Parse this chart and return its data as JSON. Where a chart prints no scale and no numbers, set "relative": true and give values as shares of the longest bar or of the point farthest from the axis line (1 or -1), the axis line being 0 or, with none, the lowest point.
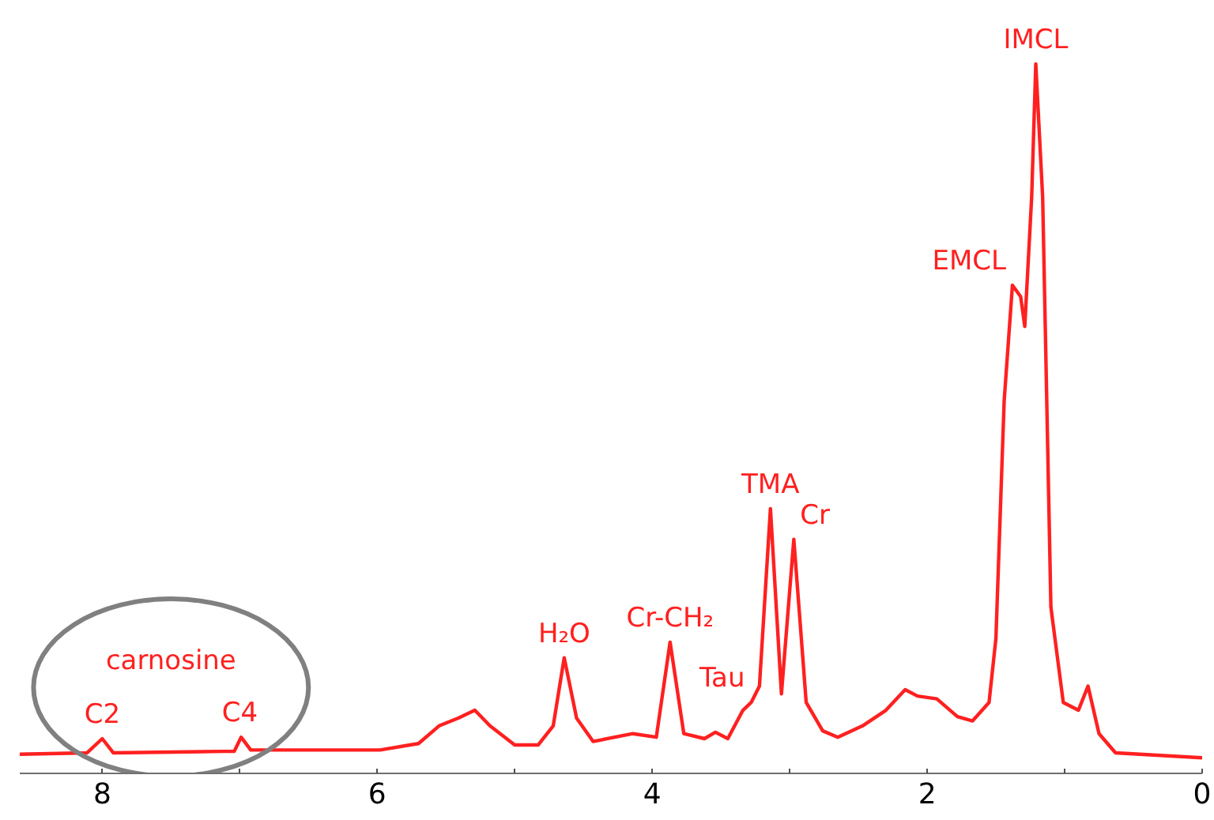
{
  "chart_data": {
    "type": "line",
    "relative": true,
    "xlim": [
      8.6,
      0
    ],
    "xticks": [
      8,
      6,
      4,
      2,
      0
    ],
    "grid": false,
    "marker": "none",
    "line_style": "solid",
    "x": [
      8.6,
      8.11,
      8.0,
      7.92,
      7.13,
      7.04,
      6.99,
      6.92,
      5.98,
      5.7,
      5.55,
      5.41,
      5.29,
      5.18,
      5.0,
      4.83,
      4.72,
      4.64,
      4.55,
      4.43,
      4.14,
      3.97,
      3.87,
      3.77,
      3.62,
      3.54,
      3.45,
      3.34,
      3.28,
      3.22,
      3.14,
      3.06,
      2.97,
      2.88,
      2.76,
      2.65,
      2.47,
      2.3,
      2.16,
      2.07,
      1.93,
      1.78,
      1.67,
      1.55,
      1.5,
      1.44,
      1.38,
      1.32,
      1.29,
      1.24,
      1.21,
      1.16,
      1.1,
      1.01,
      0.9,
      0.83,
      0.75,
      0.63,
      0.0
    ],
    "series": [
      {
        "color": "#ff2020",
        "values": [
          0.027,
          0.029,
          0.049,
          0.029,
          0.031,
          0.031,
          0.051,
          0.033,
          0.033,
          0.042,
          0.067,
          0.078,
          0.089,
          0.067,
          0.04,
          0.04,
          0.067,
          0.163,
          0.078,
          0.045,
          0.056,
          0.051,
          0.185,
          0.056,
          0.049,
          0.058,
          0.049,
          0.089,
          0.1,
          0.123,
          0.373,
          0.112,
          0.33,
          0.1,
          0.06,
          0.051,
          0.067,
          0.089,
          0.118,
          0.109,
          0.105,
          0.08,
          0.074,
          0.1,
          0.19,
          0.525,
          0.688,
          0.672,
          0.63,
          0.812,
          1.0,
          0.812,
          0.234,
          0.1,
          0.089,
          0.123,
          0.056,
          0.029,
          0.022
        ]
      }
    ],
    "annotations": [
      {
        "text": "IMCL",
        "x": 1.21,
        "y": 1.0
      },
      {
        "text": "EMCL",
        "x": 1.38,
        "y": 0.688
      },
      {
        "text": "TMA",
        "x": 3.14,
        "y": 0.373
      },
      {
        "text": "Cr",
        "x": 2.97,
        "y": 0.33
      },
      {
        "text": "Tau",
        "x": 3.28,
        "y": 0.1
      },
      {
        "text": "Cr-CH₂",
        "x": 3.87,
        "y": 0.185
      },
      {
        "text": "H₂O",
        "x": 4.64,
        "y": 0.163
      },
      {
        "text": "C2",
        "x": 8.0,
        "y": 0.049
      },
      {
        "text": "C4",
        "x": 7.0,
        "y": 0.051
      },
      "carnosine"
    ]
  }
}
